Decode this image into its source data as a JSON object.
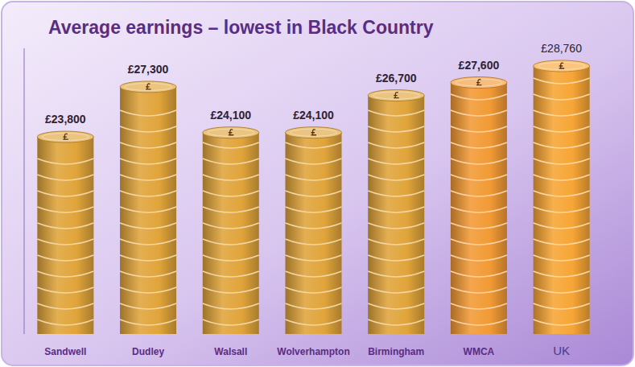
{
  "chart_data": {
    "type": "bar",
    "title": "Average earnings – lowest in Black Country",
    "categories": [
      "Sandwell",
      "Dudley",
      "Walsall",
      "Wolverhampton",
      "Birmingham",
      "WMCA",
      "UK"
    ],
    "values": [
      23800,
      27300,
      24100,
      24100,
      26700,
      27600,
      28760
    ],
    "value_labels": [
      "£23,800",
      "£27,300",
      "£24,100",
      "£24,100",
      "£26,700",
      "£27,600",
      "£28,760"
    ],
    "colors": [
      "#e0a43a",
      "#e0a43a",
      "#e0a43a",
      "#e0a43a",
      "#e0a43a",
      "#f29a35",
      "#f7a535"
    ],
    "ylim": [
      10000,
      30000
    ],
    "data_labels": true,
    "tick_labels": false
  }
}
